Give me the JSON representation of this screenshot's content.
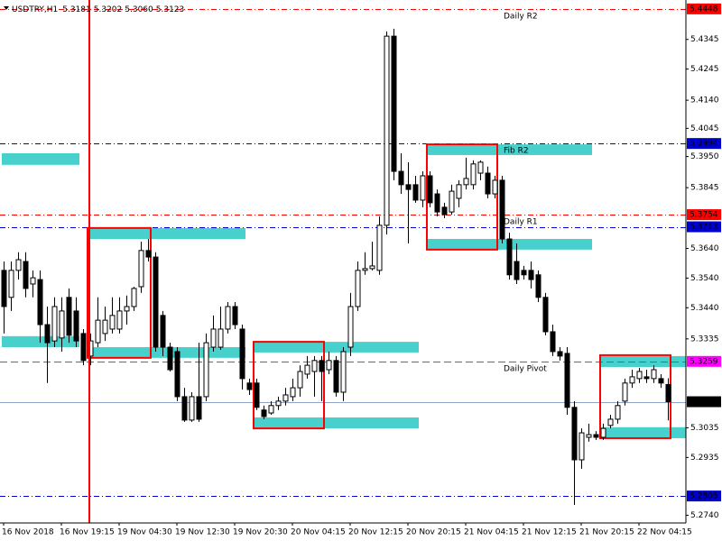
{
  "chart_data": {
    "type": "candlestick",
    "title": "USDTRY,H1",
    "quote": {
      "values": [
        5.3181,
        5.3202,
        5.306,
        5.3123
      ],
      "value_labels": [
        "5.3181",
        "5.3202",
        "5.3060",
        "5.3123"
      ]
    },
    "categories": [
      "16 Nov 2018",
      null,
      null,
      null,
      null,
      null,
      null,
      null,
      "16 Nov 19:15",
      null,
      null,
      null,
      null,
      null,
      null,
      null,
      "19 Nov 04:30",
      null,
      null,
      null,
      null,
      null,
      null,
      null,
      "19 Nov 12:30",
      null,
      null,
      null,
      null,
      null,
      null,
      null,
      "19 Nov 20:30",
      null,
      null,
      null,
      null,
      null,
      null,
      null,
      "20 Nov 04:15",
      null,
      null,
      null,
      null,
      null,
      null,
      null,
      "20 Nov 12:15",
      null,
      null,
      null,
      null,
      null,
      null,
      null,
      "20 Nov 20:15",
      null,
      null,
      null,
      null,
      null,
      null,
      null,
      "21 Nov 04:15",
      null,
      null,
      null,
      null,
      null,
      null,
      null,
      "21 Nov 12:15",
      null,
      null,
      null,
      null,
      null,
      null,
      null,
      "21 Nov 20:15",
      null,
      null,
      null,
      null,
      null,
      null,
      null,
      "22 Nov 04:15",
      null,
      null,
      null,
      null
    ],
    "open": [
      5.3566,
      5.3475,
      5.3566,
      5.3596,
      5.352,
      5.3535,
      5.3383,
      5.3328,
      5.3338,
      5.3475,
      5.3429,
      5.3353,
      5.3277,
      5.3322,
      5.3353,
      5.3368,
      5.3368,
      5.3429,
      5.3444,
      5.3511,
      5.3633,
      5.3611,
      5.3414,
      5.3307,
      5.3292,
      5.314,
      5.3061,
      5.314,
      5.314,
      5.3307,
      5.3307,
      5.3368,
      5.3444,
      5.3368,
      5.3186,
      5.3186,
      5.3095,
      5.3085,
      5.311,
      5.3125,
      5.314,
      5.317,
      5.3216,
      5.3225,
      5.3262,
      5.3231,
      5.3262,
      5.3155,
      5.3307,
      5.3444,
      5.3566,
      5.3572,
      5.3566,
      5.3718,
      5.4356,
      5.39,
      5.3855,
      5.3855,
      5.3803,
      5.3885,
      5.3824,
      5.3779,
      5.3763,
      5.3809,
      5.3855,
      5.3855,
      5.3894,
      5.3894,
      5.3824,
      5.387,
      5.3672,
      5.3596,
      5.3566,
      5.3566,
      5.3551,
      5.3475,
      5.3359,
      5.3292,
      5.3286,
      5.3104,
      5.2927,
      5.3003,
      5.3012,
      5.3003,
      5.3043,
      5.3064,
      5.3125,
      5.3186,
      5.3201,
      5.3207,
      5.3201,
      5.3201,
      5.3181
    ],
    "high": [
      5.3596,
      5.3596,
      5.3627,
      5.3627,
      5.3566,
      5.3566,
      5.3444,
      5.3475,
      5.3475,
      5.3505,
      5.3475,
      5.3368,
      5.3353,
      5.3475,
      5.3444,
      5.3475,
      5.3475,
      5.3481,
      5.3511,
      5.3663,
      5.3672,
      5.3627,
      5.3429,
      5.3322,
      5.3307,
      5.317,
      5.3155,
      5.3322,
      5.3353,
      5.3414,
      5.3444,
      5.3459,
      5.3459,
      5.3383,
      5.3201,
      5.3201,
      5.311,
      5.3125,
      5.314,
      5.317,
      5.3201,
      5.3246,
      5.3277,
      5.3277,
      5.3277,
      5.3292,
      5.3277,
      5.3307,
      5.349,
      5.3596,
      5.3627,
      5.3663,
      5.3748,
      5.4372,
      5.4381,
      5.3961,
      5.3931,
      5.3885,
      5.39,
      5.39,
      5.3839,
      5.3794,
      5.3855,
      5.387,
      5.3946,
      5.3937,
      5.3937,
      5.3916,
      5.3885,
      5.3885,
      5.3693,
      5.3657,
      5.3581,
      5.3596,
      5.3566,
      5.349,
      5.3383,
      5.3307,
      5.3307,
      5.3125,
      5.3033,
      5.3049,
      5.3024,
      5.3049,
      5.3079,
      5.3125,
      5.3201,
      5.3231,
      5.3237,
      5.3231,
      5.3246,
      5.3216,
      5.3202
    ],
    "low": [
      5.3353,
      5.3429,
      5.3535,
      5.3475,
      5.3475,
      5.3322,
      5.3186,
      5.3307,
      5.3292,
      5.3322,
      5.3307,
      5.3246,
      5.3246,
      5.3307,
      5.3328,
      5.3353,
      5.3353,
      5.3383,
      5.3429,
      5.349,
      5.3596,
      5.3292,
      5.3277,
      5.3225,
      5.3125,
      5.3055,
      5.3055,
      5.3055,
      5.3125,
      5.3292,
      5.3298,
      5.3353,
      5.3368,
      5.3164,
      5.3146,
      5.3095,
      5.3064,
      5.3079,
      5.3095,
      5.311,
      5.3125,
      5.314,
      5.3201,
      5.314,
      5.3125,
      5.3216,
      5.314,
      5.3125,
      5.3277,
      5.3429,
      5.3551,
      5.3566,
      5.3551,
      5.3687,
      5.387,
      5.3824,
      5.3657,
      5.3794,
      5.3779,
      5.3779,
      5.3748,
      5.3742,
      5.3754,
      5.3779,
      5.3839,
      5.3839,
      5.387,
      5.3809,
      5.3809,
      5.3657,
      5.3535,
      5.352,
      5.3535,
      5.3505,
      5.3459,
      5.3347,
      5.3277,
      5.3262,
      5.3079,
      5.2775,
      5.2897,
      5.2988,
      5.2994,
      5.2994,
      5.3033,
      5.3049,
      5.311,
      5.317,
      5.3186,
      5.3186,
      5.3186,
      5.317,
      5.306
    ],
    "close": [
      5.3444,
      5.3566,
      5.3602,
      5.3505,
      5.3541,
      5.3383,
      5.3322,
      5.3444,
      5.3429,
      5.3347,
      5.3328,
      5.3262,
      5.3328,
      5.3398,
      5.3398,
      5.3414,
      5.3429,
      5.3444,
      5.3505,
      5.3633,
      5.3611,
      5.3307,
      5.3307,
      5.3231,
      5.314,
      5.3061,
      5.314,
      5.3064,
      5.3322,
      5.3368,
      5.3368,
      5.3444,
      5.3383,
      5.3201,
      5.3164,
      5.3104,
      5.3073,
      5.311,
      5.3125,
      5.3146,
      5.317,
      5.3225,
      5.3246,
      5.3262,
      5.3225,
      5.3262,
      5.3155,
      5.3292,
      5.3444,
      5.3566,
      5.3572,
      5.3581,
      5.3718,
      5.4356,
      5.39,
      5.3855,
      5.3839,
      5.3803,
      5.3885,
      5.3794,
      5.3763,
      5.3754,
      5.3833,
      5.3855,
      5.3876,
      5.3925,
      5.3931,
      5.3824,
      5.387,
      5.3672,
      5.3551,
      5.3535,
      5.3551,
      5.3535,
      5.3475,
      5.3359,
      5.3292,
      5.3277,
      5.3104,
      5.2927,
      5.3018,
      5.3012,
      5.3003,
      5.3033,
      5.3064,
      5.311,
      5.3186,
      5.3207,
      5.3225,
      5.3201,
      5.3231,
      5.3186,
      5.3123
    ],
    "bull_color": "#ffffff",
    "bear_color": "#000000",
    "ylim": [
      5.2714,
      5.4478
    ],
    "yticks": [
      5.4345,
      5.4245,
      {
        "value": 5.414,
        "label": "5.4140"
      },
      5.4045,
      {
        "value": 5.395,
        "label": "5.3950"
      },
      5.3845,
      {
        "value": 5.364,
        "label": "5.3640"
      },
      {
        "value": 5.354,
        "label": "5.3540"
      },
      {
        "value": 5.344,
        "label": "5.3440"
      },
      5.3335,
      5.3035,
      5.2935,
      {
        "value": 5.274,
        "label": "5.2740"
      }
    ],
    "levels": [
      {
        "label": "Daily R2",
        "value": 5.4448,
        "color": "#ff0000",
        "style": "dashdot"
      },
      {
        "label": "Fib R2",
        "value": 5.3994,
        "color": "#0000cc",
        "style": "dashdot",
        "label_color": "#ffffff"
      },
      {
        "label": "Daily R1",
        "value": 5.3754,
        "color": "#ff0000",
        "style": "dashdot"
      },
      {
        "value": 5.3713,
        "color": "#0000cc",
        "style": "dashdot"
      },
      {
        "label": "Daily Pivot",
        "value": 5.3259,
        "color": "#ff00ff",
        "style": "dashed"
      },
      {
        "value": 5.3123,
        "color": "#000000",
        "line_color": "#8fa3c8",
        "style": "solid"
      },
      {
        "value": 5.2805,
        "color": "#0000cc",
        "style": "dashdot"
      }
    ],
    "zone_color": "#48d1cc",
    "zones": [
      {
        "start": 0,
        "end": 10,
        "top": 5.3961,
        "bottom": 5.3922
      },
      {
        "start": 12,
        "end": 33,
        "top": 5.3709,
        "bottom": 5.3672
      },
      {
        "start": 0,
        "end": 10,
        "top": 5.3344,
        "bottom": 5.3307
      },
      {
        "start": 12,
        "end": 33,
        "top": 5.3307,
        "bottom": 5.3271
      },
      {
        "start": 35,
        "end": 57,
        "top": 5.3325,
        "bottom": 5.3289
      },
      {
        "start": 35,
        "end": 57,
        "top": 5.307,
        "bottom": 5.3033
      },
      {
        "start": 59,
        "end": 81,
        "top": 5.3991,
        "bottom": 5.3955
      },
      {
        "start": 59,
        "end": 81,
        "top": 5.3672,
        "bottom": 5.3636
      },
      {
        "start": 83,
        "end": 92,
        "top": 5.3277,
        "bottom": 5.324
      },
      {
        "start": 83,
        "end": 92,
        "top": 5.3037,
        "bottom": 5.3
      }
    ],
    "box_color": "#ff0000",
    "boxes": [
      {
        "start": 12,
        "end": 20,
        "top": 5.3709,
        "bottom": 5.3271
      },
      {
        "start": 35,
        "end": 44,
        "top": 5.3325,
        "bottom": 5.3033
      },
      {
        "start": 59,
        "end": 68,
        "top": 5.3991,
        "bottom": 5.3636
      },
      {
        "start": 83,
        "end": 92,
        "top": 5.328,
        "bottom": 5.3
      }
    ]
  }
}
